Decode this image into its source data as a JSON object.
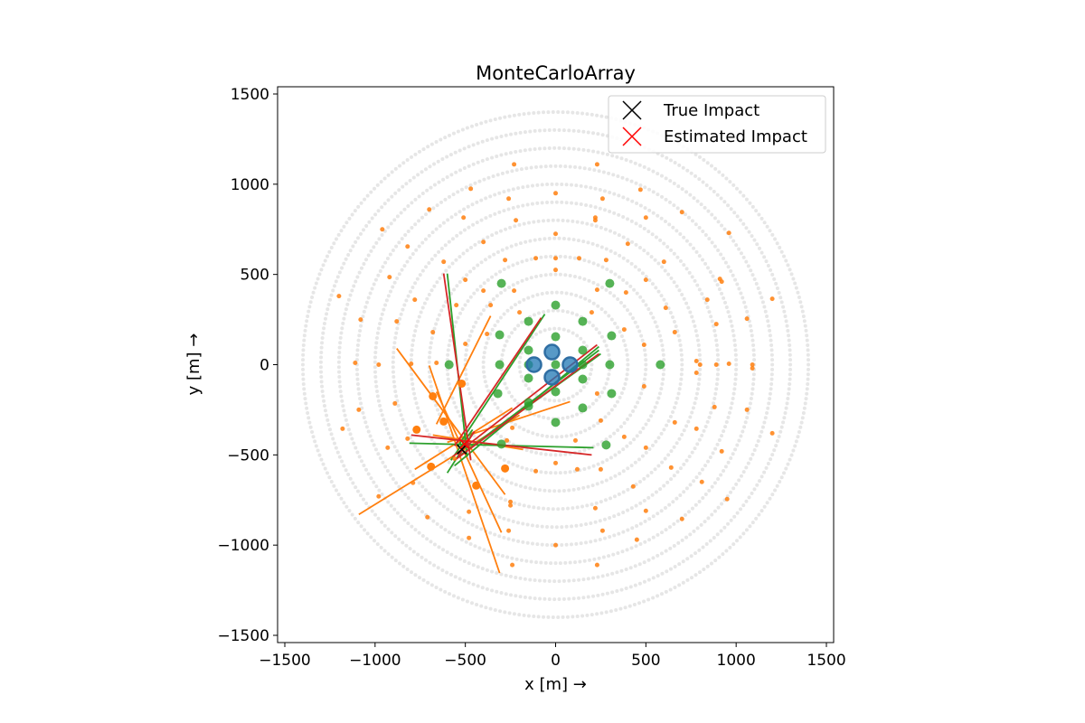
{
  "chart_data": {
    "type": "scatter",
    "title": "MonteCarloArray",
    "xlabel": "x [m] →",
    "ylabel": "y [m] →",
    "xlim": [
      -1540,
      1540
    ],
    "ylim": [
      -1540,
      1540
    ],
    "xticks": [
      -1500,
      -1000,
      -500,
      0,
      500,
      1000,
      1500
    ],
    "yticks": [
      -1500,
      -1000,
      -500,
      0,
      500,
      1000,
      1500
    ],
    "xtick_labels": [
      "−1500",
      "−1000",
      "−500",
      "0",
      "500",
      "1000",
      "1500"
    ],
    "ytick_labels": [
      "−1500",
      "−1000",
      "−500",
      "0",
      "500",
      "1000",
      "1500"
    ],
    "grid": false,
    "legend": {
      "position": "top-right",
      "entries": [
        {
          "label": "True Impact",
          "marker": "x",
          "color": "#000000"
        },
        {
          "label": "Estimated Impact",
          "marker": "x",
          "color": "#ff0000"
        }
      ]
    },
    "background_rings": {
      "color": "#e6e6e6",
      "radii": [
        200,
        300,
        400,
        500,
        600,
        700,
        800,
        900,
        1000,
        1100,
        1200,
        1300,
        1400
      ]
    },
    "colors": {
      "lst": "#1f77b4",
      "mst": "#2ca02c",
      "sst": "#ff7f0e",
      "true_impact": "#000000",
      "estimated_impact": "#ff0000"
    },
    "series": [
      {
        "marker_size": 16,
        "points": [
          [
            -120,
            0
          ],
          [
            -20,
            70
          ],
          [
            -20,
            -70
          ],
          [
            80,
            0
          ]
        ]
      },
      {
        "marker_size": 10,
        "points": [
          [
            -300,
            450
          ],
          [
            -150,
            240
          ],
          [
            0,
            330
          ],
          [
            150,
            240
          ],
          [
            300,
            450
          ],
          [
            -310,
            165
          ],
          [
            -150,
            80
          ],
          [
            0,
            155
          ],
          [
            150,
            80
          ],
          [
            310,
            160
          ],
          [
            -590,
            0
          ],
          [
            -310,
            0
          ],
          [
            -150,
            0
          ],
          [
            0,
            0
          ],
          [
            150,
            0
          ],
          [
            300,
            0
          ],
          [
            580,
            0
          ],
          [
            -320,
            -160
          ],
          [
            -150,
            -75
          ],
          [
            0,
            -150
          ],
          [
            150,
            -80
          ],
          [
            310,
            -160
          ],
          [
            -150,
            -210
          ],
          [
            -150,
            -230
          ],
          [
            0,
            -320
          ],
          [
            150,
            -240
          ],
          [
            -300,
            -440
          ],
          [
            280,
            -445
          ]
        ]
      },
      {
        "marker_size": 9,
        "points": [
          [
            -680,
            -175
          ],
          [
            -620,
            -315
          ],
          [
            -520,
            -105
          ],
          [
            -770,
            -360
          ],
          [
            -690,
            -565
          ],
          [
            -280,
            -575
          ],
          [
            -440,
            -670
          ]
        ]
      },
      {
        "marker_size": 5,
        "points": [
          [
            -230,
            1110
          ],
          [
            230,
            1110
          ],
          [
            -470,
            975
          ],
          [
            470,
            970
          ],
          [
            -260,
            920
          ],
          [
            0,
            950
          ],
          [
            260,
            920
          ],
          [
            -700,
            860
          ],
          [
            -510,
            815
          ],
          [
            -220,
            800
          ],
          [
            220,
            800
          ],
          [
            220,
            815
          ],
          [
            500,
            815
          ],
          [
            700,
            845
          ],
          [
            -960,
            750
          ],
          [
            -400,
            680
          ],
          [
            0,
            725
          ],
          [
            400,
            670
          ],
          [
            960,
            730
          ],
          [
            -820,
            655
          ],
          [
            -280,
            580
          ],
          [
            0,
            590
          ],
          [
            -620,
            570
          ],
          [
            -110,
            590
          ],
          [
            130,
            590
          ],
          [
            280,
            580
          ],
          [
            600,
            570
          ],
          [
            -920,
            485
          ],
          [
            -500,
            470
          ],
          [
            -400,
            410
          ],
          [
            -230,
            410
          ],
          [
            0,
            525
          ],
          [
            230,
            415
          ],
          [
            500,
            470
          ],
          [
            910,
            475
          ],
          [
            920,
            460
          ],
          [
            -780,
            360
          ],
          [
            -1200,
            380
          ],
          [
            -1080,
            250
          ],
          [
            -880,
            240
          ],
          [
            -680,
            180
          ],
          [
            -550,
            330
          ],
          [
            -360,
            330
          ],
          [
            -500,
            115
          ],
          [
            -380,
            170
          ],
          [
            -200,
            290
          ],
          [
            200,
            290
          ],
          [
            380,
            195
          ],
          [
            390,
            400
          ],
          [
            610,
            315
          ],
          [
            840,
            360
          ],
          [
            1060,
            255
          ],
          [
            1200,
            365
          ],
          [
            -1110,
            10
          ],
          [
            -980,
            0
          ],
          [
            -800,
            5
          ],
          [
            -660,
            10
          ],
          [
            -1090,
            -250
          ],
          [
            -1180,
            -355
          ],
          [
            -890,
            -215
          ],
          [
            -820,
            -410
          ],
          [
            -930,
            -460
          ],
          [
            490,
            110
          ],
          [
            660,
            180
          ],
          [
            890,
            225
          ],
          [
            780,
            20
          ],
          [
            800,
            0
          ],
          [
            890,
            0
          ],
          [
            960,
            5
          ],
          [
            1090,
            0
          ],
          [
            1090,
            -20
          ],
          [
            -240,
            -350
          ],
          [
            230,
            -160
          ],
          [
            490,
            -120
          ],
          [
            780,
            -45
          ],
          [
            1060,
            -250
          ],
          [
            1200,
            -380
          ],
          [
            880,
            -235
          ],
          [
            660,
            -320
          ],
          [
            780,
            -355
          ],
          [
            -560,
            -520
          ],
          [
            -790,
            -655
          ],
          [
            -980,
            -730
          ],
          [
            -710,
            -845
          ],
          [
            -480,
            -815
          ],
          [
            -480,
            -960
          ],
          [
            -250,
            -760
          ],
          [
            -250,
            -780
          ],
          [
            -260,
            -920
          ],
          [
            -240,
            -1110
          ],
          [
            -270,
            -420
          ],
          [
            -110,
            -590
          ],
          [
            0,
            -545
          ],
          [
            120,
            -580
          ],
          [
            110,
            -420
          ],
          [
            250,
            -310
          ],
          [
            250,
            -580
          ],
          [
            260,
            -920
          ],
          [
            230,
            -1110
          ],
          [
            450,
            -970
          ],
          [
            500,
            -810
          ],
          [
            430,
            -675
          ],
          [
            380,
            -400
          ],
          [
            500,
            -460
          ],
          [
            640,
            -570
          ],
          [
            700,
            -855
          ],
          [
            810,
            -650
          ],
          [
            920,
            -480
          ],
          [
            950,
            -745
          ],
          [
            220,
            -795
          ],
          [
            0,
            -1000
          ]
        ]
      }
    ],
    "reconstruction_lines": [
      {
        "x": [
          -660,
          -360
        ],
        "y": [
          -330,
          270
        ],
        "color": "#ff7f0e"
      },
      {
        "x": [
          -780,
          -240
        ],
        "y": [
          -580,
          -240
        ],
        "color": "#ff7f0e"
      },
      {
        "x": [
          -1090,
          -200
        ],
        "y": [
          -830,
          -280
        ],
        "color": "#ff7f0e"
      },
      {
        "x": [
          -880,
          -280
        ],
        "y": [
          90,
          -720
        ],
        "color": "#ff7f0e"
      },
      {
        "x": [
          -700,
          -310
        ],
        "y": [
          -5,
          -1155
        ],
        "color": "#ff7f0e"
      },
      {
        "x": [
          -660,
          -300
        ],
        "y": [
          -150,
          -930
        ],
        "color": "#ff7f0e"
      },
      {
        "x": [
          -680,
          -180
        ],
        "y": [
          -390,
          -470
        ],
        "color": "#ff7f0e"
      },
      {
        "x": [
          -600,
          80
        ],
        "y": [
          -430,
          -205
        ],
        "color": "#ff7f0e"
      },
      {
        "x": [
          -600,
          -490
        ],
        "y": [
          505,
          -510
        ],
        "color": "#2ca02c"
      },
      {
        "x": [
          -540,
          -60
        ],
        "y": [
          -450,
          280
        ],
        "color": "#2ca02c"
      },
      {
        "x": [
          -560,
          240
        ],
        "y": [
          -560,
          100
        ],
        "color": "#2ca02c"
      },
      {
        "x": [
          -540,
          250
        ],
        "y": [
          -510,
          60
        ],
        "color": "#2ca02c"
      },
      {
        "x": [
          -550,
          240
        ],
        "y": [
          -520,
          80
        ],
        "color": "#2ca02c"
      },
      {
        "x": [
          -810,
          210
        ],
        "y": [
          -435,
          -460
        ],
        "color": "#2ca02c"
      },
      {
        "x": [
          -580,
          -460
        ],
        "y": [
          -530,
          -360
        ],
        "color": "#2ca02c"
      },
      {
        "x": [
          -600,
          -460
        ],
        "y": [
          -600,
          -380
        ],
        "color": "#2ca02c"
      },
      {
        "x": [
          -620,
          -470
        ],
        "y": [
          505,
          -530
        ],
        "color": "#d62728"
      },
      {
        "x": [
          -560,
          -80
        ],
        "y": [
          -450,
          260
        ],
        "color": "#d62728"
      },
      {
        "x": [
          -570,
          230
        ],
        "y": [
          -510,
          110
        ],
        "color": "#d62728"
      },
      {
        "x": [
          -560,
          240
        ],
        "y": [
          -530,
          60
        ],
        "color": "#d62728"
      },
      {
        "x": [
          -800,
          200
        ],
        "y": [
          -390,
          -500
        ],
        "color": "#d62728"
      },
      {
        "x": [
          -540,
          -450
        ],
        "y": [
          -510,
          -370
        ],
        "color": "#d62728"
      }
    ],
    "true_impact": [
      -520,
      -470
    ],
    "estimated_impact": [
      -505,
      -440
    ]
  }
}
